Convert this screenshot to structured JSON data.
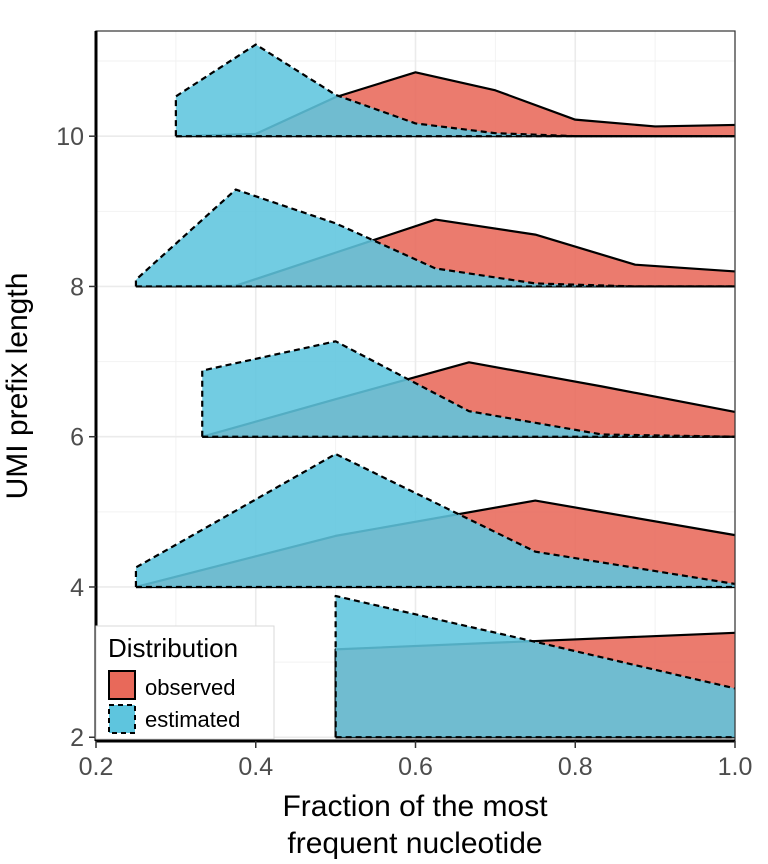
{
  "chart_data": {
    "type": "area",
    "xlabel": [
      "Fraction of the most",
      "frequent nucleotide"
    ],
    "ylabel": "UMI prefix length",
    "xlim": [
      0.2,
      1.0
    ],
    "ylim": [
      1.95,
      11.4
    ],
    "x_ticks": [
      0.2,
      0.4,
      0.6,
      0.8,
      1.0
    ],
    "x_tick_labels": [
      "0.2",
      "0.4",
      "0.6",
      "0.8",
      "1.0"
    ],
    "y_ticks": [
      2,
      4,
      6,
      8,
      10
    ],
    "y_tick_labels": [
      "2",
      "4",
      "6",
      "8",
      "10"
    ],
    "grid": true,
    "legend": {
      "title": "Distribution",
      "position": "bottom-left",
      "entries": [
        {
          "label": "observed",
          "color": "#E8695A",
          "line": "solid"
        },
        {
          "label": "estimated",
          "color": "#5EC5DE",
          "line": "dashed"
        }
      ]
    },
    "ridges": [
      {
        "baseline": 10,
        "observed": [
          [
            0.3,
            10.0
          ],
          [
            0.4,
            10.03
          ],
          [
            0.5,
            10.52
          ],
          [
            0.6,
            10.85
          ],
          [
            0.7,
            10.61
          ],
          [
            0.8,
            10.22
          ],
          [
            0.9,
            10.13
          ],
          [
            1.0,
            10.15
          ]
        ],
        "estimated": [
          [
            0.3,
            10.53
          ],
          [
            0.4,
            11.22
          ],
          [
            0.5,
            10.55
          ],
          [
            0.6,
            10.17
          ],
          [
            0.7,
            10.04
          ],
          [
            0.8,
            10.0
          ],
          [
            0.9,
            10.0
          ],
          [
            1.0,
            10.0
          ]
        ]
      },
      {
        "baseline": 8,
        "observed": [
          [
            0.25,
            8.0
          ],
          [
            0.375,
            8.01
          ],
          [
            0.5,
            8.45
          ],
          [
            0.625,
            8.89
          ],
          [
            0.75,
            8.69
          ],
          [
            0.875,
            8.29
          ],
          [
            1.0,
            8.2
          ]
        ],
        "estimated": [
          [
            0.25,
            8.09
          ],
          [
            0.375,
            9.29
          ],
          [
            0.5,
            8.84
          ],
          [
            0.625,
            8.24
          ],
          [
            0.75,
            8.04
          ],
          [
            0.875,
            8.0
          ],
          [
            1.0,
            8.0
          ]
        ]
      },
      {
        "baseline": 6,
        "observed": [
          [
            0.333,
            6.0
          ],
          [
            0.5,
            6.5
          ],
          [
            0.667,
            6.99
          ],
          [
            0.833,
            6.67
          ],
          [
            1.0,
            6.33
          ]
        ],
        "estimated": [
          [
            0.333,
            6.88
          ],
          [
            0.5,
            7.27
          ],
          [
            0.667,
            6.34
          ],
          [
            0.833,
            6.03
          ],
          [
            1.0,
            6.0
          ]
        ]
      },
      {
        "baseline": 4,
        "observed": [
          [
            0.25,
            4.0
          ],
          [
            0.5,
            4.68
          ],
          [
            0.75,
            5.15
          ],
          [
            1.0,
            4.69
          ]
        ],
        "estimated": [
          [
            0.25,
            4.26
          ],
          [
            0.5,
            5.77
          ],
          [
            0.75,
            4.47
          ],
          [
            1.0,
            4.04
          ]
        ]
      },
      {
        "baseline": 2,
        "observed": [
          [
            0.5,
            3.17
          ],
          [
            0.75,
            3.28
          ],
          [
            1.0,
            3.39
          ]
        ],
        "estimated": [
          [
            0.5,
            3.88
          ],
          [
            0.75,
            3.27
          ],
          [
            1.0,
            2.65
          ]
        ]
      }
    ]
  }
}
